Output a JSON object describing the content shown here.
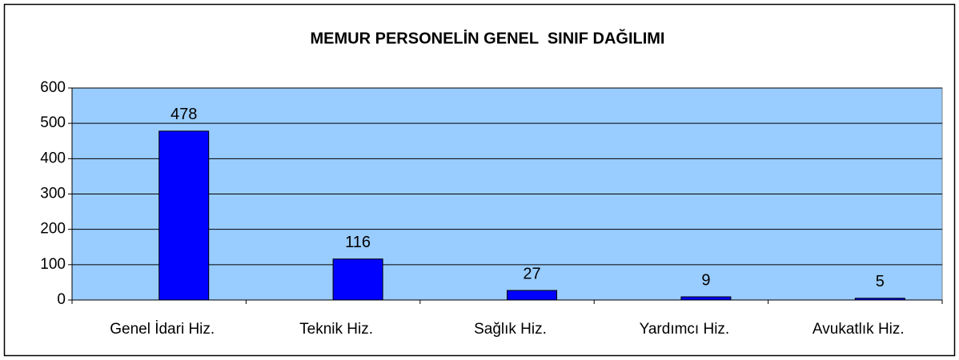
{
  "chart_data": {
    "type": "bar",
    "title": "MEMUR PERSONELİN GENEL  SINIF DAĞILIMI",
    "categories": [
      "Genel İdari Hiz.",
      "Teknik Hiz.",
      "Sağlık Hiz.",
      "Yardımcı Hiz.",
      "Avukatlık Hiz."
    ],
    "values": [
      478,
      116,
      27,
      9,
      5
    ],
    "color": "#0000ff",
    "background": "#99ccff",
    "ylim": [
      0,
      600
    ],
    "yticks": [
      0,
      100,
      200,
      300,
      400,
      500,
      600
    ],
    "grid": true
  }
}
